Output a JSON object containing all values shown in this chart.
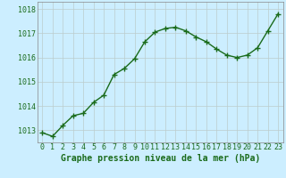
{
  "x": [
    0,
    1,
    2,
    3,
    4,
    5,
    6,
    7,
    8,
    9,
    10,
    11,
    12,
    13,
    14,
    15,
    16,
    17,
    18,
    19,
    20,
    21,
    22,
    23
  ],
  "y": [
    1012.9,
    1012.75,
    1013.2,
    1013.6,
    1013.7,
    1014.15,
    1014.45,
    1015.3,
    1015.55,
    1015.95,
    1016.65,
    1017.05,
    1017.2,
    1017.25,
    1017.1,
    1016.85,
    1016.65,
    1016.35,
    1016.1,
    1016.0,
    1016.1,
    1016.4,
    1017.1,
    1017.8
  ],
  "ylim": [
    1012.5,
    1018.3
  ],
  "yticks": [
    1013,
    1014,
    1015,
    1016,
    1017,
    1018
  ],
  "xticks": [
    0,
    1,
    2,
    3,
    4,
    5,
    6,
    7,
    8,
    9,
    10,
    11,
    12,
    13,
    14,
    15,
    16,
    17,
    18,
    19,
    20,
    21,
    22,
    23
  ],
  "line_color": "#1a6b1a",
  "marker": "+",
  "marker_size": 4,
  "bg_color": "#cceeff",
  "grid_color": "#bbcccc",
  "xlabel": "Graphe pression niveau de la mer (hPa)",
  "xlabel_color": "#1a6b1a",
  "xlabel_fontsize": 7,
  "tick_fontsize": 6,
  "tick_color": "#1a6b1a",
  "line_width": 1.0
}
